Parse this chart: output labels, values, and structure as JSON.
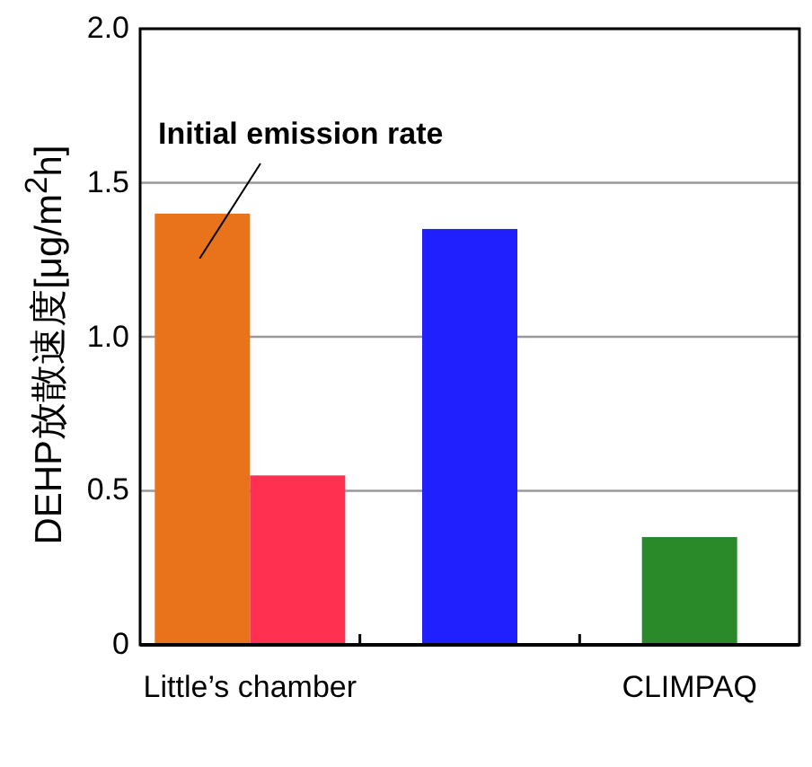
{
  "chart_data": {
    "type": "bar",
    "ylabel": "DEHP放散速度[μg/m$^{2}$h]",
    "categories": [
      "Little’s chamber",
      null,
      "CLIMPAQ"
    ],
    "series": [
      {
        "colors": [
          "#e8731a",
          "#2020ff",
          "#2a8a2a"
        ],
        "values": [
          1.4,
          1.35,
          0.35
        ]
      },
      {
        "colors": [
          "#ff3050",
          null,
          null
        ],
        "values": [
          0.55,
          null,
          null
        ]
      }
    ],
    "ylim": [
      0,
      2.0
    ],
    "yticks": [
      0,
      0.5,
      {
        "value": 1.0,
        "label": "1.0"
      },
      1.5,
      {
        "value": 2.0,
        "label": "2.0"
      }
    ],
    "grid": "y",
    "annotations": [
      {
        "text": "Initial emission rate",
        "x": "Little’s chamber",
        "y": 1.4
      }
    ]
  }
}
